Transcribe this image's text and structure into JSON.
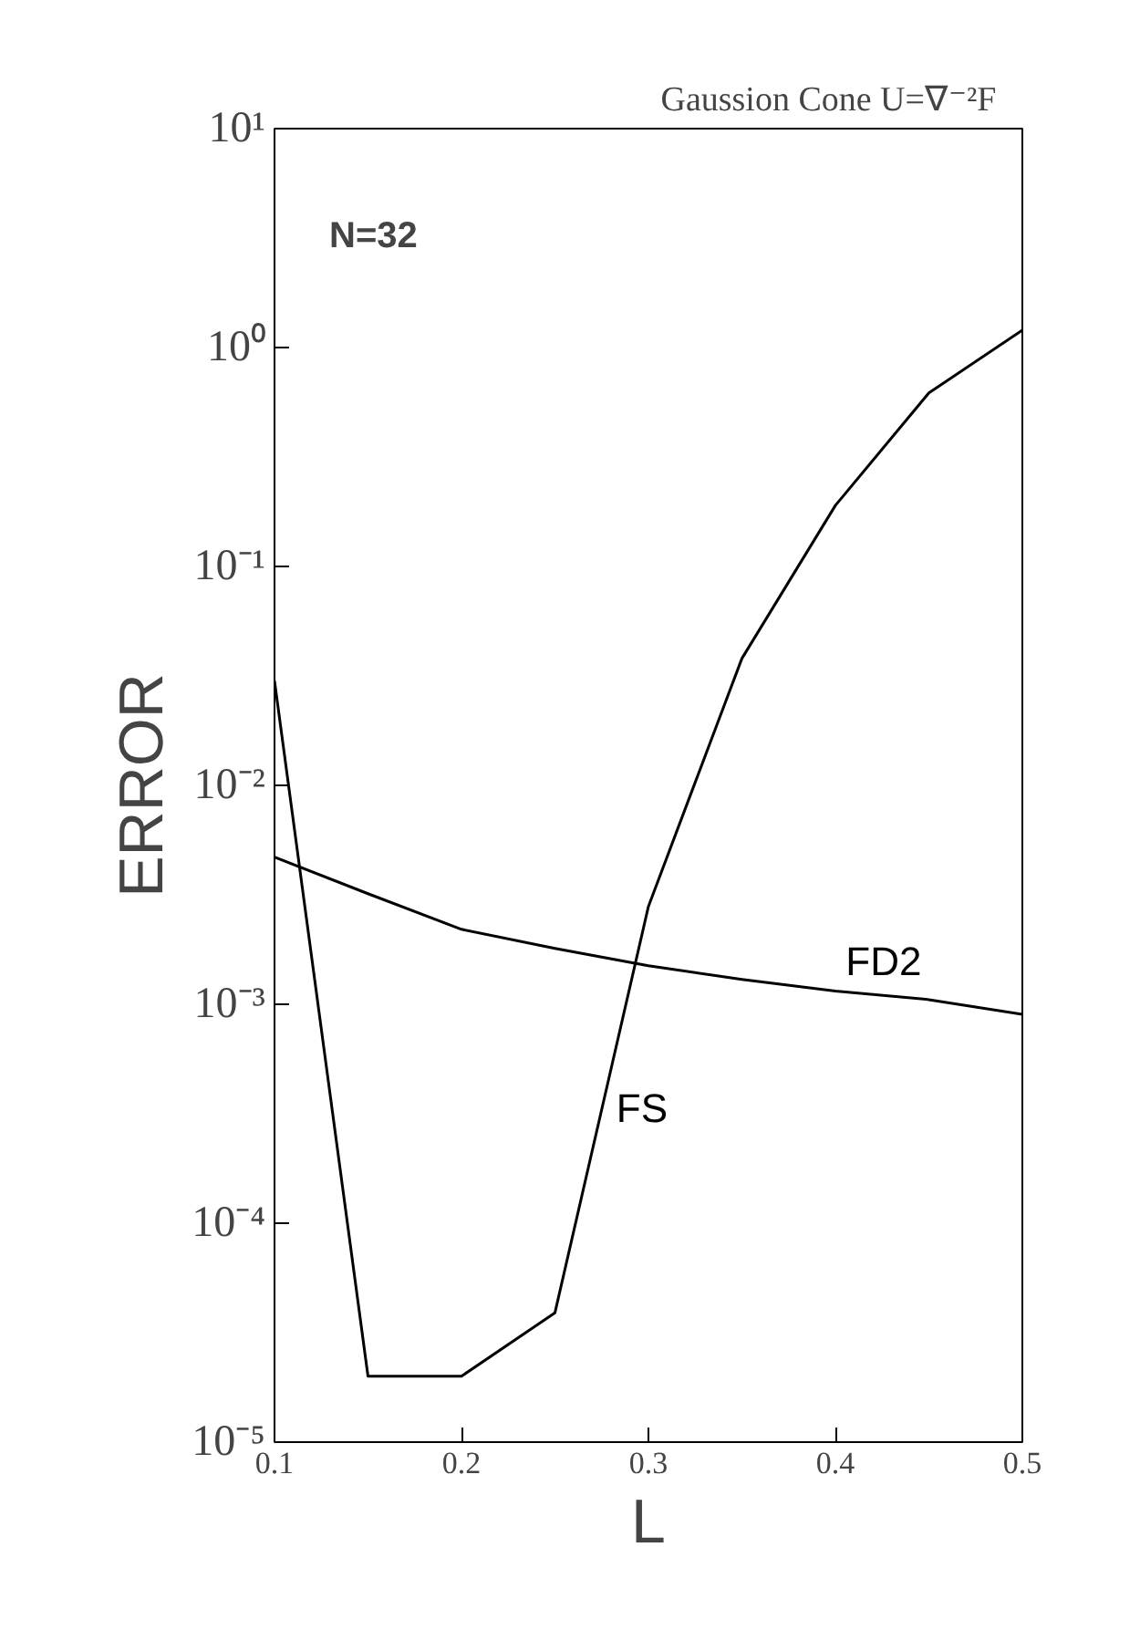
{
  "chart_data": {
    "type": "line",
    "title": "Gaussion Cone    U=∇⁻²F",
    "xlabel": "L",
    "ylabel": "ERROR",
    "log": "y",
    "grid": false,
    "legend": false,
    "marker": "none",
    "line_style": "solid",
    "x": [
      0.1,
      0.15,
      0.2,
      0.25,
      0.3,
      0.35,
      0.4,
      0.45,
      0.5
    ],
    "xlim": [
      0.1,
      0.5
    ],
    "xticks": [
      0.1,
      0.2,
      0.3,
      0.4,
      0.5
    ],
    "ylim": [
      1e-05,
      10
    ],
    "yticks": [
      {
        "value": 1e-05,
        "label": "10⁻⁵"
      },
      {
        "value": 0.0001,
        "label": "10⁻⁴"
      },
      {
        "value": 0.001,
        "label": "10⁻³"
      },
      {
        "value": 0.01,
        "label": "10⁻²"
      },
      {
        "value": 0.1,
        "label": "10⁻¹"
      },
      {
        "value": 1,
        "label": "10⁰"
      },
      {
        "value": 10,
        "label": "10¹"
      }
    ],
    "series": [
      {
        "name": "FD2",
        "color": "#000000",
        "values": [
          0.0047,
          0.0032,
          0.0022,
          0.0018,
          0.0015,
          0.0013,
          0.00115,
          0.00105,
          0.0009
        ]
      },
      {
        "name": "FS",
        "color": "#000000",
        "values": [
          0.03,
          2e-05,
          2e-05,
          3.9e-05,
          0.0028,
          0.038,
          0.19,
          0.62,
          1.2
        ]
      }
    ],
    "annotations": [
      "N=32"
    ]
  }
}
